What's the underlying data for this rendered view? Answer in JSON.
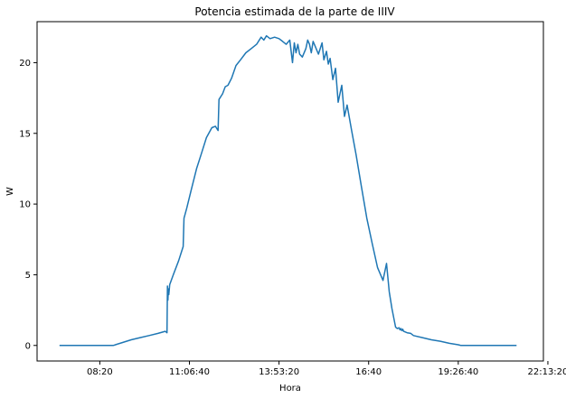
{
  "chart_data": {
    "type": "line",
    "title": "Potencia estimada de la parte de IIIV",
    "xlabel": "Hora",
    "ylabel": "W",
    "x_unit": "seconds since 00:00",
    "xlim": [
      23000,
      79500
    ],
    "ylim": [
      -1.1,
      22.9
    ],
    "x_ticks": [
      {
        "value": 30000,
        "label": "08:20"
      },
      {
        "value": 40000,
        "label": "11:06:40"
      },
      {
        "value": 50000,
        "label": "13:53:20"
      },
      {
        "value": 60000,
        "label": "16:40"
      },
      {
        "value": 70000,
        "label": "19:26:40"
      },
      {
        "value": 80000,
        "label": "22:13:20"
      }
    ],
    "y_ticks": [
      0,
      5,
      10,
      15,
      20
    ],
    "grid": false,
    "legend": "none",
    "color": "#1f77b4",
    "series": [
      {
        "x": [
          25500,
          28000,
          31500,
          32500,
          33500,
          34500,
          35500,
          36500,
          37300,
          37500,
          37550,
          37600,
          37650,
          37700,
          37800,
          38200,
          38800,
          39300,
          39400,
          39700,
          40200,
          40800,
          41300,
          41900,
          42500,
          42900,
          43200,
          43300,
          43700,
          44000,
          44300,
          44700,
          45200,
          45700,
          46300,
          46900,
          47500,
          48000,
          48300,
          48600,
          49000,
          49500,
          50000,
          50400,
          50800,
          51200,
          51500,
          51700,
          51900,
          52100,
          52300,
          52600,
          53000,
          53200,
          53400,
          53600,
          53800,
          54000,
          54400,
          54800,
          55000,
          55300,
          55500,
          55700,
          56000,
          56300,
          56600,
          57000,
          57300,
          57600,
          58100,
          58600,
          59200,
          59800,
          60400,
          61000,
          61600,
          62000,
          62300,
          62600,
          63000,
          63200,
          63400,
          63500,
          63600,
          63700,
          63800,
          63900,
          64300,
          64700,
          65000,
          66000,
          67000,
          68000,
          69000,
          70000,
          70300,
          72000,
          76500
        ],
        "y": [
          0,
          0,
          0,
          0.2,
          0.4,
          0.55,
          0.7,
          0.85,
          1.0,
          0.9,
          4.2,
          3.2,
          4.0,
          3.6,
          4.3,
          5.0,
          6.0,
          7.0,
          9.0,
          9.7,
          11.0,
          12.5,
          13.5,
          14.7,
          15.4,
          15.5,
          15.2,
          17.4,
          17.8,
          18.3,
          18.4,
          18.9,
          19.8,
          20.2,
          20.7,
          21.0,
          21.3,
          21.8,
          21.6,
          21.9,
          21.7,
          21.8,
          21.7,
          21.5,
          21.3,
          21.6,
          20.0,
          21.4,
          20.7,
          21.3,
          20.6,
          20.4,
          21.0,
          21.6,
          21.3,
          20.7,
          21.5,
          21.2,
          20.6,
          21.4,
          20.2,
          20.8,
          19.9,
          20.3,
          18.8,
          19.6,
          17.2,
          18.4,
          16.2,
          17.0,
          15.2,
          13.5,
          11.2,
          9.0,
          7.2,
          5.5,
          4.6,
          5.8,
          3.8,
          2.6,
          1.3,
          1.2,
          1.25,
          1.1,
          1.2,
          1.05,
          1.15,
          1.0,
          0.9,
          0.85,
          0.7,
          0.55,
          0.4,
          0.3,
          0.15,
          0.05,
          0,
          0,
          0
        ]
      }
    ]
  }
}
